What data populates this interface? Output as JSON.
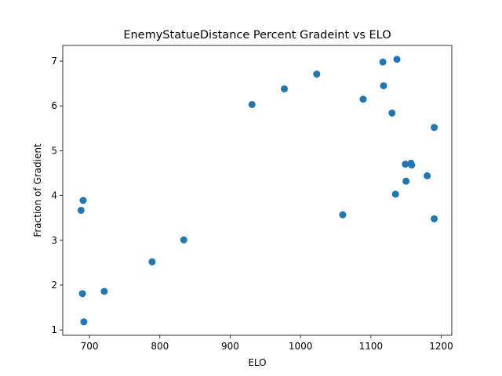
{
  "chart_data": {
    "type": "scatter",
    "title": "EnemyStatueDistance Percent Gradeint vs ELO",
    "xlabel": "ELO",
    "ylabel": "Fraction of Gradient",
    "xlim": [
      662,
      1215
    ],
    "ylim": [
      0.88,
      7.35
    ],
    "xticks": [
      700,
      800,
      900,
      1000,
      1100,
      1200
    ],
    "yticks": [
      1,
      2,
      3,
      4,
      5,
      6,
      7
    ],
    "grid": false,
    "marker_color": "#1f77b4",
    "points": [
      {
        "x": 688,
        "y": 3.67
      },
      {
        "x": 691,
        "y": 3.89
      },
      {
        "x": 690,
        "y": 1.81
      },
      {
        "x": 692,
        "y": 1.18
      },
      {
        "x": 721,
        "y": 1.86
      },
      {
        "x": 789,
        "y": 2.52
      },
      {
        "x": 834,
        "y": 3.01
      },
      {
        "x": 931,
        "y": 6.03
      },
      {
        "x": 977,
        "y": 6.38
      },
      {
        "x": 1023,
        "y": 6.71
      },
      {
        "x": 1060,
        "y": 3.57
      },
      {
        "x": 1089,
        "y": 6.15
      },
      {
        "x": 1117,
        "y": 6.98
      },
      {
        "x": 1118,
        "y": 6.45
      },
      {
        "x": 1130,
        "y": 5.84
      },
      {
        "x": 1137,
        "y": 7.04
      },
      {
        "x": 1135,
        "y": 4.03
      },
      {
        "x": 1149,
        "y": 4.7
      },
      {
        "x": 1150,
        "y": 4.32
      },
      {
        "x": 1157,
        "y": 4.72
      },
      {
        "x": 1158,
        "y": 4.68
      },
      {
        "x": 1180,
        "y": 4.44
      },
      {
        "x": 1190,
        "y": 5.52
      },
      {
        "x": 1190,
        "y": 3.48
      }
    ]
  }
}
